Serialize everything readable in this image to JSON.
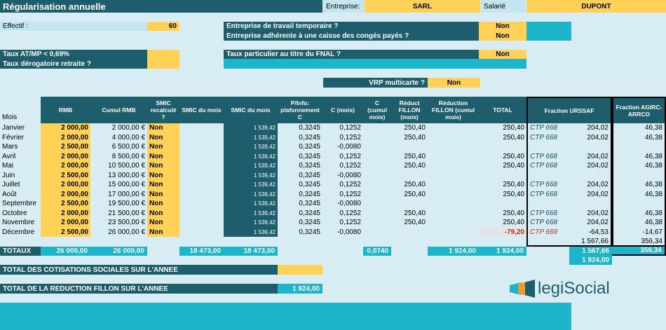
{
  "header": {
    "title": "Régularisation annuelle",
    "entreprise_label": "Entreprise:",
    "entreprise_value": "SARL",
    "salarie_label": "Salarié",
    "salarie_value": "DUPONT"
  },
  "params": {
    "effectif_label": "Effectif :",
    "effectif_value": "60",
    "ett_label": "Entreprise de travail temporaire ?",
    "ett_value": "Non",
    "conges_label": "Entreprise adhérente à une caisse des congés payés ?",
    "conges_value": "Non",
    "atmp_label": "Taux AT/MP < 0,69%",
    "derog_label": "Taux dérogatoire retraite ?",
    "fnal_label": "Taux particulier au titre du FNAL ?",
    "fnal_value": "Non",
    "vrp_label": "VRP multicarte ?",
    "vrp_value": "Non"
  },
  "columns": {
    "mois": "Mois",
    "rmb": "RMB",
    "cumul_rmb": "Cumul RMB",
    "smic_recalc": "SMIC recalculé ?",
    "smic_mois": "SMIC du mois",
    "smic_mois2": "SMIC du mois",
    "p_info": "P/Info: plafonnement C",
    "c_mois": "C (mois)",
    "c_cumul": "C (cumul mois)",
    "reduct_fillon": "Réduct FILLON (mois)",
    "reduction_cumul": "Réduction FILLON (cumul mois)",
    "total": "TOTAL",
    "fraction_urssaf": "Fraction URSSAF",
    "fraction_agirc": "Fraction AGIRC-ARRCO"
  },
  "rows": [
    {
      "mois": "Janvier",
      "rmb": "2 000,00",
      "cumul": "2 000,00 €",
      "smic": "Non",
      "smic2": "1 539,42",
      "pinfo": "0,3245",
      "cmois": "0,1252",
      "reduct": "250,40",
      "total": "250,40",
      "ctp": "CTP 668",
      "urssaf": "204,02",
      "agirc": "46,38"
    },
    {
      "mois": "Février",
      "rmb": "2 000,00",
      "cumul": "4 000,00 €",
      "smic": "Non",
      "smic2": "1 539,42",
      "pinfo": "0,3245",
      "cmois": "0,1252",
      "reduct": "250,40",
      "total": "250,40",
      "ctp": "CTP 668",
      "urssaf": "204,02",
      "agirc": "46,38"
    },
    {
      "mois": "Mars",
      "rmb": "2 500,00",
      "cumul": "6 500,00 €",
      "smic": "Non",
      "smic2": "1 539,42",
      "pinfo": "0,3245",
      "cmois": "-0,0080",
      "reduct": "",
      "total": "",
      "ctp": "",
      "urssaf": "",
      "agirc": ""
    },
    {
      "mois": "Avril",
      "rmb": "2 000,00",
      "cumul": "8 500,00 €",
      "smic": "Non",
      "smic2": "1 539,42",
      "pinfo": "0,3245",
      "cmois": "0,1252",
      "reduct": "250,40",
      "total": "250,40",
      "ctp": "CTP 668",
      "urssaf": "204,02",
      "agirc": "46,38"
    },
    {
      "mois": "Mai",
      "rmb": "2 000,00",
      "cumul": "10 500,00 €",
      "smic": "Non",
      "smic2": "1 539,42",
      "pinfo": "0,3245",
      "cmois": "0,1252",
      "reduct": "250,40",
      "total": "250,40",
      "ctp": "CTP 668",
      "urssaf": "204,02",
      "agirc": "46,38"
    },
    {
      "mois": "Juin",
      "rmb": "2 500,00",
      "cumul": "13 000,00 €",
      "smic": "Non",
      "smic2": "1 539,42",
      "pinfo": "0,3245",
      "cmois": "-0,0080",
      "reduct": "",
      "total": "",
      "ctp": "",
      "urssaf": "",
      "agirc": ""
    },
    {
      "mois": "Juillet",
      "rmb": "2 000,00",
      "cumul": "15 000,00 €",
      "smic": "Non",
      "smic2": "1 539,42",
      "pinfo": "0,3245",
      "cmois": "0,1252",
      "reduct": "250,40",
      "total": "250,40",
      "ctp": "CTP 668",
      "urssaf": "204,02",
      "agirc": "46,38"
    },
    {
      "mois": "Août",
      "rmb": "2 000,00",
      "cumul": "17 000,00 €",
      "smic": "Non",
      "smic2": "1 539,42",
      "pinfo": "0,3245",
      "cmois": "0,1252",
      "reduct": "250,40",
      "total": "250,40",
      "ctp": "CTP 668",
      "urssaf": "204,02",
      "agirc": "46,38"
    },
    {
      "mois": "Septembre",
      "rmb": "2 500,00",
      "cumul": "19 500,00 €",
      "smic": "Non",
      "smic2": "1 539,42",
      "pinfo": "0,3245",
      "cmois": "-0,0080",
      "reduct": "",
      "total": "",
      "ctp": "",
      "urssaf": "",
      "agirc": ""
    },
    {
      "mois": "Octobre",
      "rmb": "2 000,00",
      "cumul": "21 500,00 €",
      "smic": "Non",
      "smic2": "1 539,42",
      "pinfo": "0,3245",
      "cmois": "0,1252",
      "reduct": "250,40",
      "total": "250,40",
      "ctp": "CTP 668",
      "urssaf": "204,02",
      "agirc": "46,38"
    },
    {
      "mois": "Novembre",
      "rmb": "2 000,00",
      "cumul": "23 500,00 €",
      "smic": "Non",
      "smic2": "1 539,42",
      "pinfo": "0,3245",
      "cmois": "0,1252",
      "reduct": "250,40",
      "total": "250,40",
      "ctp": "CTP 668",
      "urssaf": "204,02",
      "agirc": "46,38"
    },
    {
      "mois": "Décembre",
      "rmb": "2 500,00",
      "cumul": "26 000,00 €",
      "smic": "Non",
      "smic2": "1 539,42",
      "pinfo": "0,3245",
      "cmois": "-0,0080",
      "reduct": "",
      "total": "-79,20",
      "ctp": "CTP 669",
      "urssaf": "-64,53",
      "agirc": "-14,67"
    }
  ],
  "subtotals": {
    "urssaf": "1 567,66",
    "agirc": "356,34"
  },
  "totaux": {
    "label": "TOTAUX",
    "rmb": "26 000,00",
    "cumul": "26 000,00",
    "smic_mois": "18 473,00",
    "smic_mois2": "18 473,00",
    "c_cumul": "0,0740",
    "reduction_cumul": "1 924,00",
    "total": "1 924,00",
    "urssaf": "1 567,66",
    "agirc": "356,34",
    "grand_total": "1 924,00"
  },
  "footer": {
    "cotisations_label": "TOTAL DES COTISATIONS SOCIALES SUR L'ANNEE",
    "fillon_label": "TOTAL DE LA REDUCTION FILLON SUR L'ANNEE",
    "fillon_value": "1 924,00"
  },
  "logo": {
    "text_legi": "legi",
    "text_social": "Social"
  }
}
